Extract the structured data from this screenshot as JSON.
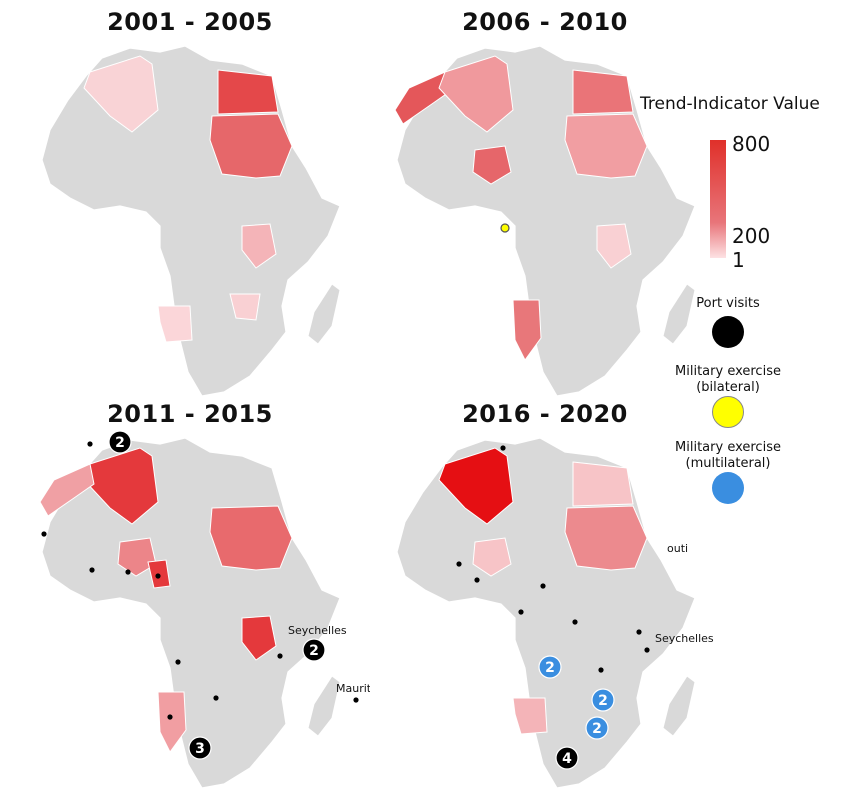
{
  "panels": [
    {
      "title": "2001 - 2005",
      "highlighted": [
        {
          "country": "Egypt",
          "color": "#e4484a"
        },
        {
          "country": "Sudan",
          "color": "#e6676a"
        },
        {
          "country": "Algeria",
          "color": "#f9d3d6"
        },
        {
          "country": "Tanzania",
          "color": "#f4b4b8"
        },
        {
          "country": "Angola",
          "color": "#fbd6d9"
        },
        {
          "country": "Zambia",
          "color": "#f9d0d3"
        }
      ],
      "markers": []
    },
    {
      "title": "2006 - 2010",
      "highlighted": [
        {
          "country": "Morocco",
          "color": "#e4575a"
        },
        {
          "country": "Algeria",
          "color": "#f0999d"
        },
        {
          "country": "Egypt",
          "color": "#ea7478"
        },
        {
          "country": "Sudan",
          "color": "#f19ea2"
        },
        {
          "country": "Nigeria",
          "color": "#e6666a"
        },
        {
          "country": "Namibia",
          "color": "#e8777a"
        },
        {
          "country": "Tanzania",
          "color": "#f9d0d3"
        }
      ],
      "markers": [
        {
          "type": "bilateral",
          "count": ""
        }
      ]
    },
    {
      "title": "2011 - 2015",
      "highlighted": [
        {
          "country": "Algeria",
          "color": "#e4393c"
        },
        {
          "country": "Morocco",
          "color": "#f0a0a4"
        },
        {
          "country": "Sudan",
          "color": "#e86a6d"
        },
        {
          "country": "Nigeria",
          "color": "#ec8589"
        },
        {
          "country": "Cameroon",
          "color": "#e4393c"
        },
        {
          "country": "Tanzania",
          "color": "#e4393c"
        },
        {
          "country": "Namibia",
          "color": "#f19ea2"
        }
      ],
      "markers": [
        {
          "type": "port",
          "count": "2"
        },
        {
          "type": "port",
          "count": "2"
        },
        {
          "type": "port",
          "count": "3"
        }
      ],
      "places": [
        "Seychelles",
        "Mauritius"
      ]
    },
    {
      "title": "2016 - 2020",
      "highlighted": [
        {
          "country": "Algeria",
          "color": "#e50f13"
        },
        {
          "country": "Sudan",
          "color": "#ec8a8e"
        },
        {
          "country": "Egypt",
          "color": "#f7c4c7"
        },
        {
          "country": "Angola",
          "color": "#f4b4b8"
        },
        {
          "country": "Nigeria",
          "color": "#f7c4c7"
        }
      ],
      "markers": [
        {
          "type": "multilateral",
          "count": "2"
        },
        {
          "type": "multilateral",
          "count": "2"
        },
        {
          "type": "multilateral",
          "count": "2"
        },
        {
          "type": "port",
          "count": "4"
        }
      ],
      "places": [
        "Seychelles",
        "outi"
      ]
    }
  ],
  "legend": {
    "title": "Trend-Indicator Value",
    "ticks": [
      "800",
      "200",
      "1"
    ],
    "colors": {
      "high": "#e0302a",
      "mid": "#e8757a",
      "low": "#fde2e4"
    },
    "port_label": "Port visits",
    "bilateral_label": [
      "Military exercise",
      "(bilateral)"
    ],
    "multilateral_label": [
      "Military exercise",
      "(multilateral)"
    ],
    "port_color": "#000000",
    "bilateral_color": "#ffff00",
    "multilateral_color": "#3a8ee0"
  }
}
